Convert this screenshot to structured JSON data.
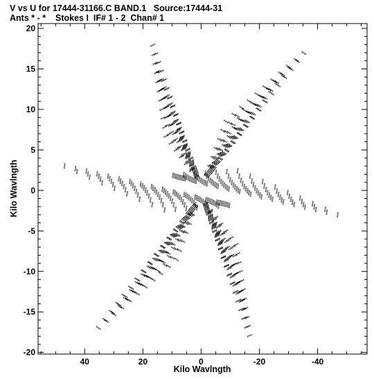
{
  "chart_data": {
    "type": "scatter",
    "title_line1": "V vs U for 17444-31166.C BAND.1   Source:17444-31",
    "title_line2": "Ants * - *    Stokes I  IF# 1 - 2  Chan# 1",
    "xlabel": "Kilo Wavlngth",
    "ylabel": "Kilo Wavlngth",
    "xlim": [
      56,
      -57
    ],
    "ylim": [
      -20.2,
      20.6
    ],
    "x_ticks": [
      40,
      20,
      0,
      -20,
      -40
    ],
    "x_tick_labels": [
      "40",
      "20",
      "0",
      "-20",
      "-40"
    ],
    "y_ticks": [
      20,
      15,
      10,
      5,
      0,
      -5,
      -10,
      -15,
      -20
    ],
    "y_tick_labels": [
      "20",
      "15",
      "10",
      "5",
      "0",
      "-5",
      "-10",
      "-15",
      "-20"
    ],
    "marker_color": "#000000",
    "track_arms": [
      {
        "name": "arm1",
        "start": [
          0.5,
          0.3
        ],
        "end": [
          -34,
          19.5
        ],
        "tracks": 11
      },
      {
        "name": "arm2",
        "start": [
          -0.5,
          -0.3
        ],
        "end": [
          34,
          -19.5
        ],
        "tracks": 11
      },
      {
        "name": "arm3",
        "start": [
          0.5,
          -0.3
        ],
        "end": [
          -22.5,
          -18.8
        ],
        "tracks": 11
      },
      {
        "name": "arm4",
        "start": [
          -0.5,
          0.3
        ],
        "end": [
          22.5,
          18.8
        ],
        "tracks": 11
      },
      {
        "name": "arm5",
        "start": [
          15,
          2
        ],
        "end": [
          -54,
          -1.5
        ],
        "tracks": 9
      },
      {
        "name": "arm6",
        "start": [
          -15,
          -2
        ],
        "end": [
          54,
          1.5
        ],
        "tracks": 9
      }
    ]
  }
}
